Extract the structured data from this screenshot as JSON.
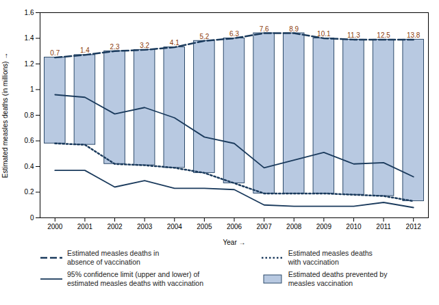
{
  "chart_data": {
    "type": "bar",
    "xlabel": "Year",
    "ylabel": "Estimated measles deaths (in millions)",
    "x": [
      2000,
      2001,
      2002,
      2003,
      2004,
      2005,
      2006,
      2007,
      2008,
      2009,
      2010,
      2011,
      2012
    ],
    "xlim": [
      1999.5,
      2012.5
    ],
    "xticks": [
      2000,
      2001,
      2002,
      2003,
      2004,
      2005,
      2006,
      2007,
      2008,
      2009,
      2010,
      2011,
      2012
    ],
    "ylim": [
      0,
      1.6
    ],
    "yticks": [
      0,
      0.2,
      0.4,
      0.6,
      0.8,
      1,
      1.2,
      1.4,
      1.6
    ],
    "grid": false,
    "series": [
      {
        "name": "Estimated measles deaths in\nabsence of vaccination",
        "type": "line",
        "line_style": "dashed",
        "color": "#1a3a5c",
        "values": [
          1.25,
          1.27,
          1.3,
          1.31,
          1.33,
          1.38,
          1.4,
          1.44,
          1.44,
          1.4,
          1.39,
          1.39,
          1.39
        ]
      },
      {
        "name": "95% confidence limit (upper and lower) of\nestimated measles deaths with vaccination",
        "type": "line",
        "line_style": "solid",
        "color": "#1a3a5c",
        "upper": [
          0.96,
          0.94,
          0.81,
          0.86,
          0.78,
          0.63,
          0.58,
          0.39,
          0.45,
          0.51,
          0.42,
          0.43,
          0.32
        ],
        "lower": [
          0.37,
          0.37,
          0.24,
          0.29,
          0.23,
          0.23,
          0.22,
          0.1,
          0.09,
          0.09,
          0.09,
          0.12,
          0.08
        ]
      },
      {
        "name": "Estimated measles deaths\nwith vaccination",
        "type": "line",
        "line_style": "dotted",
        "color": "#1a3a5c",
        "values": [
          0.58,
          0.57,
          0.42,
          0.41,
          0.39,
          0.35,
          0.27,
          0.19,
          0.19,
          0.19,
          0.18,
          0.17,
          0.13
        ]
      },
      {
        "name": "Estimated deaths prevented by\nmeasles vaccination",
        "type": "bar",
        "color": "#b8c9e1",
        "bottom": [
          0.58,
          0.57,
          0.42,
          0.41,
          0.39,
          0.35,
          0.27,
          0.19,
          0.19,
          0.19,
          0.18,
          0.17,
          0.13
        ],
        "values": [
          0.67,
          0.7,
          0.88,
          0.9,
          0.94,
          1.03,
          1.13,
          1.25,
          1.25,
          1.21,
          1.21,
          1.22,
          1.26
        ]
      }
    ],
    "annotations": [
      {
        "x": 2000,
        "text": "0.7",
        "color": "#8B3A0A"
      },
      {
        "x": 2001,
        "text": "1.4",
        "color": "#8B3A0A"
      },
      {
        "x": 2002,
        "text": "2.3",
        "color": "#8B3A0A"
      },
      {
        "x": 2003,
        "text": "3.2",
        "color": "#8B3A0A"
      },
      {
        "x": 2004,
        "text": "4.1",
        "color": "#8B3A0A"
      },
      {
        "x": 2005,
        "text": "5.2",
        "color": "#8B3A0A"
      },
      {
        "x": 2006,
        "text": "6.3",
        "color": "#8B3A0A"
      },
      {
        "x": 2007,
        "text": "7.6",
        "color": "#8B3A0A"
      },
      {
        "x": 2008,
        "text": "8.9",
        "color": "#8B3A0A"
      },
      {
        "x": 2009,
        "text": "10.1",
        "color": "#8B3A0A"
      },
      {
        "x": 2010,
        "text": "11.3",
        "color": "#8B3A0A"
      },
      {
        "x": 2011,
        "text": "12.5",
        "color": "#8B3A0A"
      },
      {
        "x": 2012,
        "text": "13.8",
        "color": "#8B3A0A"
      }
    ]
  }
}
